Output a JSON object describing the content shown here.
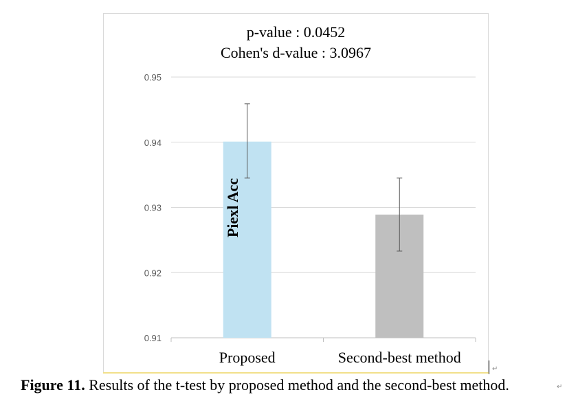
{
  "chart_data": {
    "type": "bar",
    "categories": [
      "Proposed",
      "Second-best method"
    ],
    "values": [
      0.9401,
      0.9289
    ],
    "error_low": [
      0.9345,
      0.9233
    ],
    "error_high": [
      0.9459,
      0.9345
    ],
    "ylabel": "Piexl Acc",
    "xlabel": "",
    "ylim": [
      0.91,
      0.95
    ],
    "yticks": [
      "0.91",
      "0.92",
      "0.93",
      "0.94",
      "0.95"
    ],
    "ytick_values": [
      0.91,
      0.92,
      0.93,
      0.94,
      0.95
    ],
    "grid": true,
    "colors": [
      "#c0e2f2",
      "#bfbfbf"
    ],
    "annotations": [
      "p-value : 0.0452",
      "Cohen's d-value : 3.0967"
    ]
  },
  "caption": {
    "figure_number": "Figure 11.",
    "text": " Results of the t-test by proposed method and the second-best method."
  },
  "marks": {
    "paragraph_1": "↵",
    "paragraph_2": "↵"
  }
}
